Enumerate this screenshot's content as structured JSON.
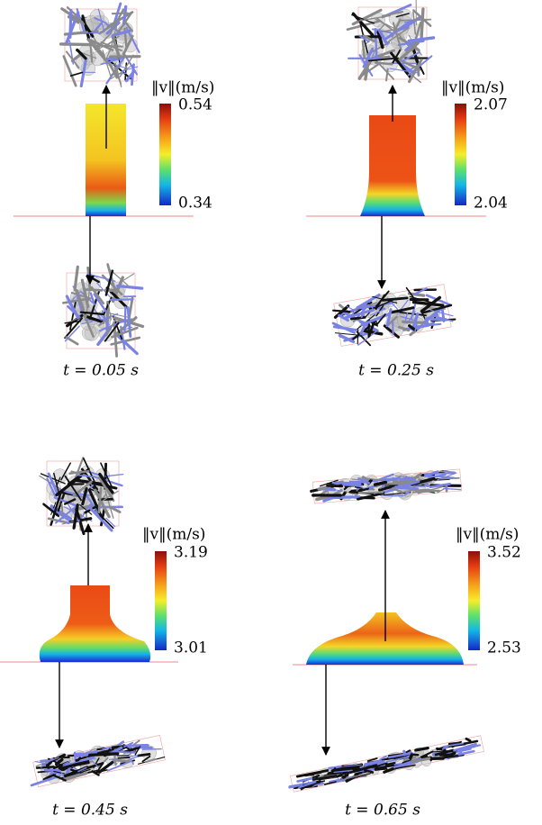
{
  "panels": [
    {
      "colorbar_label": "‖v‖(m/s)",
      "colorbar_max": 0.54,
      "colorbar_min": 0.34,
      "time": "t = 0.05 s"
    },
    {
      "colorbar_label": "‖v‖(m/s)",
      "colorbar_max": 2.07,
      "colorbar_min": 2.04,
      "time": "t = 0.25 s"
    },
    {
      "colorbar_label": "‖v‖(m/s)",
      "colorbar_max": 3.19,
      "colorbar_min": 3.01,
      "time": "t = 0.45 s"
    },
    {
      "colorbar_label": "‖v‖(m/s)",
      "colorbar_max": 3.52,
      "colorbar_min": 2.53,
      "time": "t = 0.65 s"
    }
  ]
}
